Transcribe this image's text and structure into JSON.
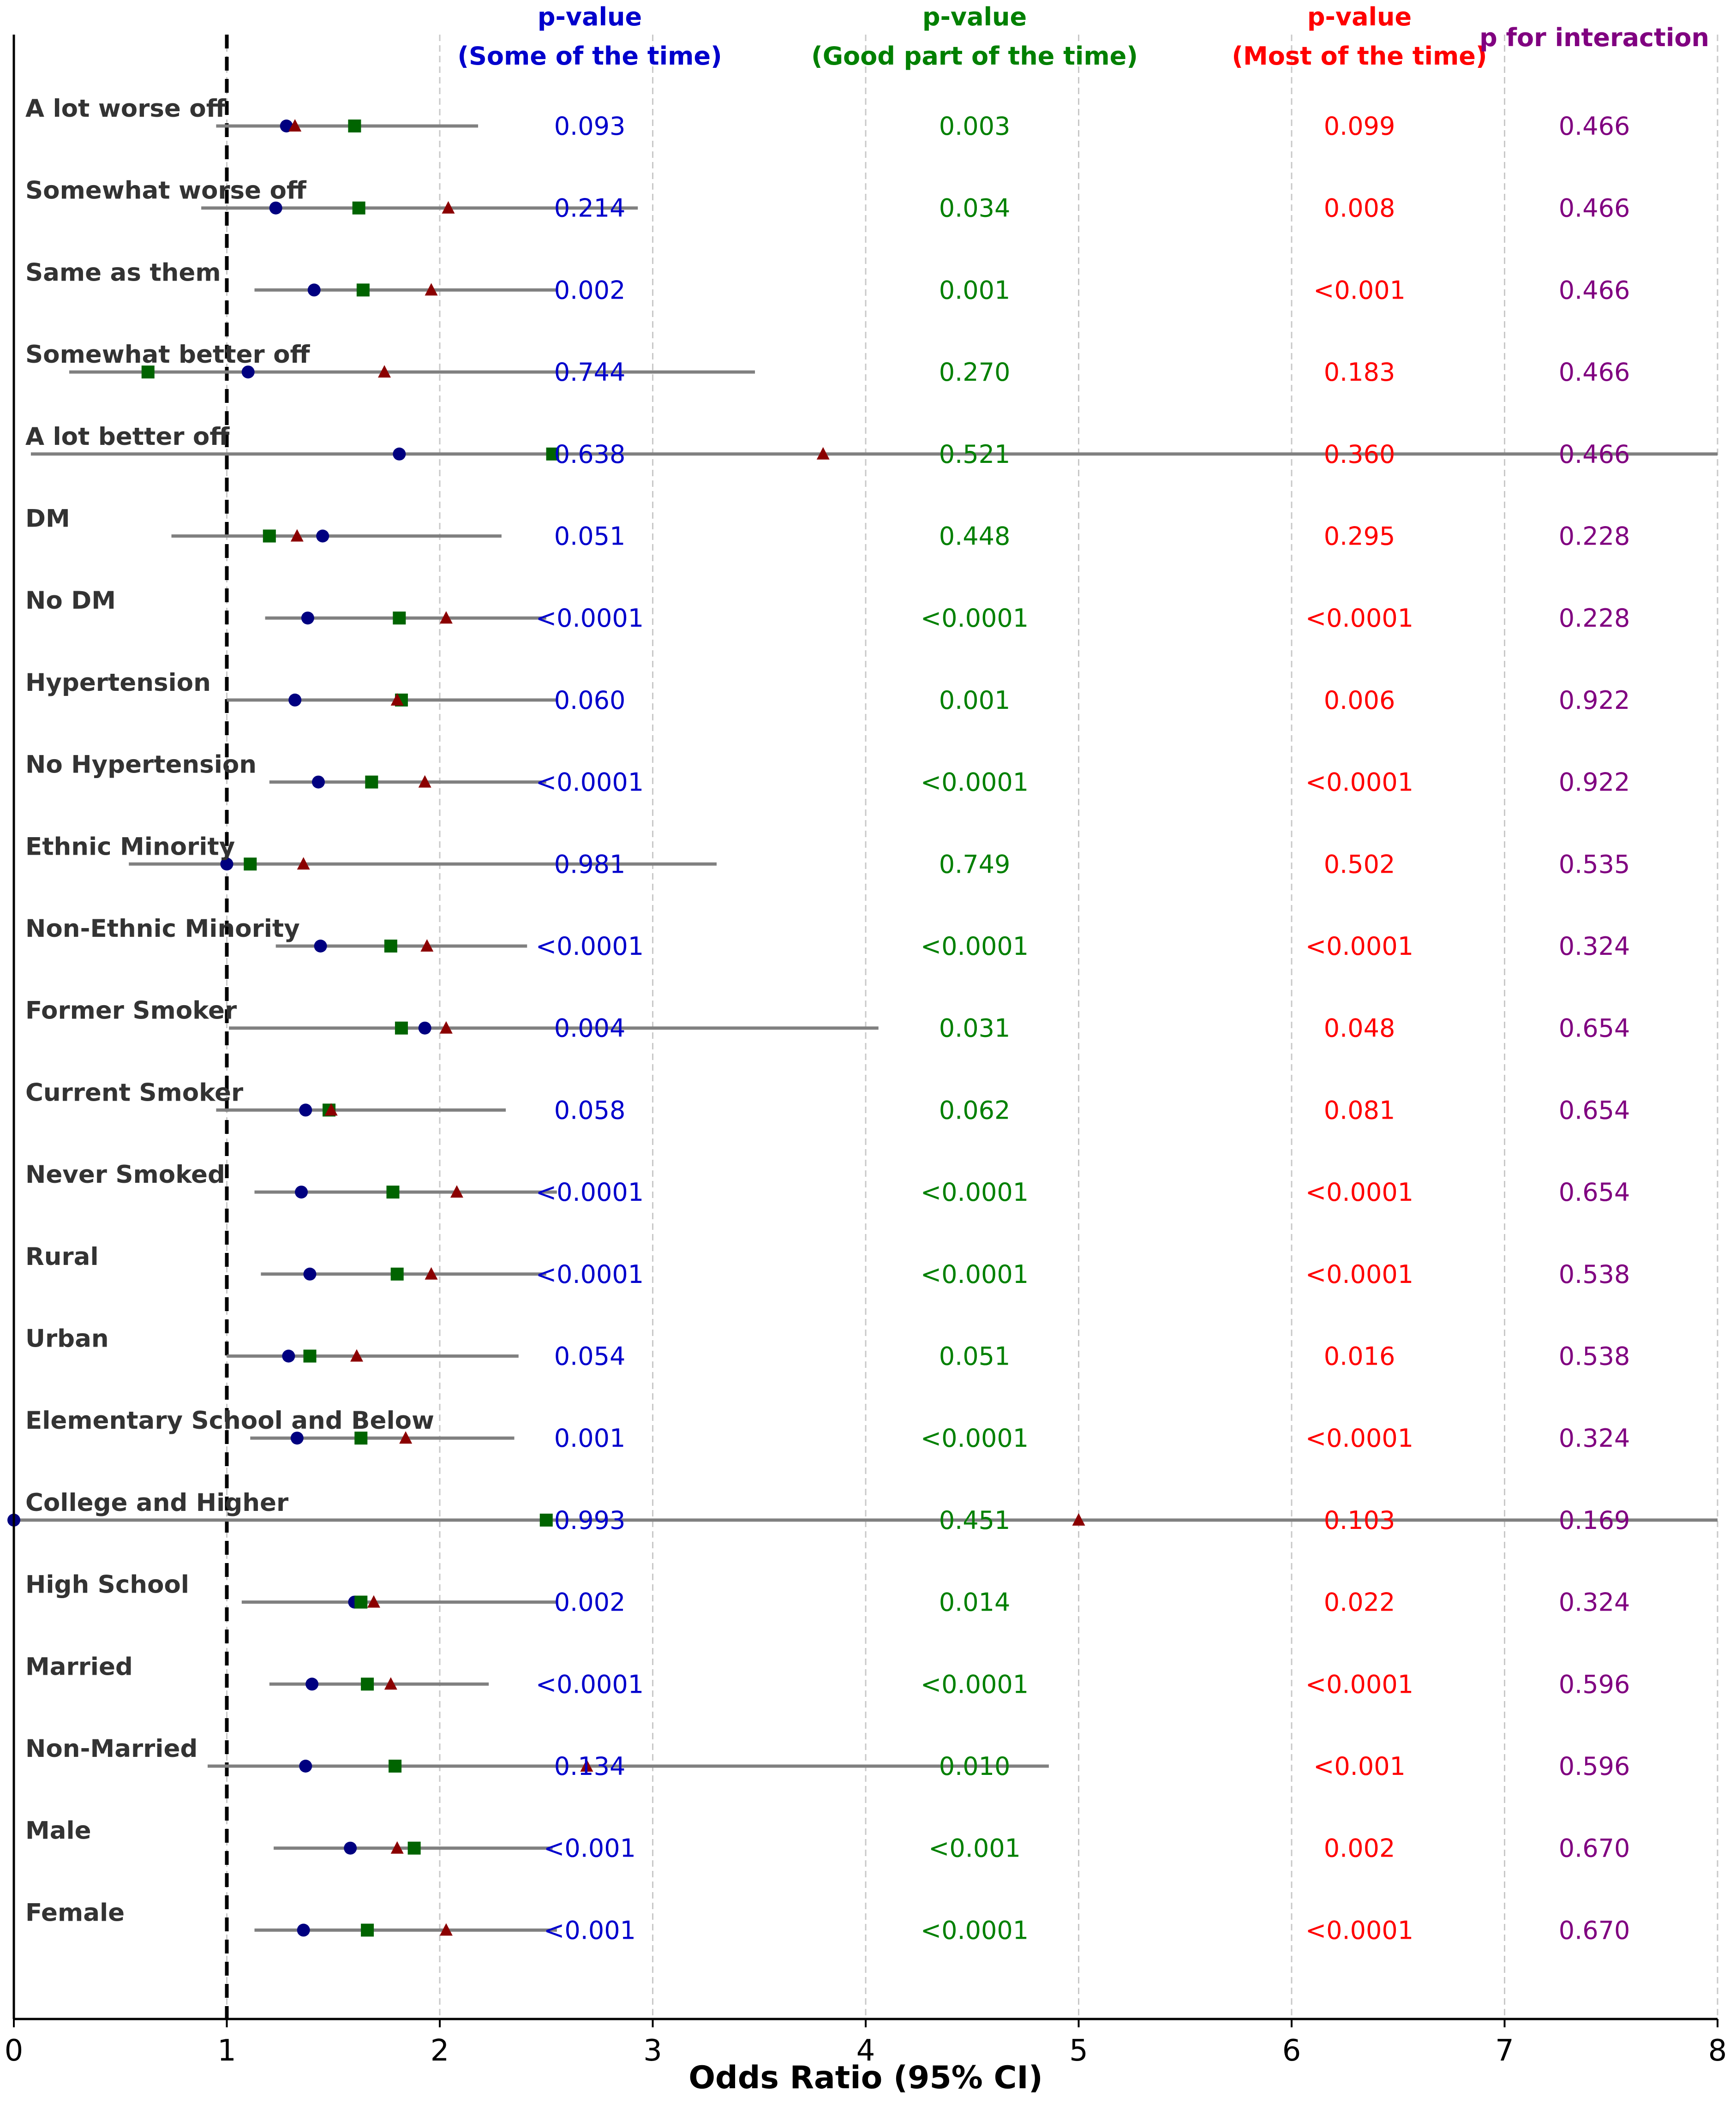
{
  "chart_data": {
    "type": "forest",
    "xlabel": "Odds Ratio (95% CI)",
    "xlim": [
      0,
      8
    ],
    "xticks": [
      "0",
      "1",
      "2",
      "3",
      "4",
      "5",
      "6",
      "7",
      "8"
    ],
    "reference_line": 1,
    "grid": "vertical dashed",
    "colors": {
      "some": "#0000cc",
      "good": "#008000",
      "most": "#ff0000",
      "interaction": "#800080",
      "ci_line": "#808080",
      "row_label": "#333333",
      "marker_some": "#000080",
      "marker_good": "#006400",
      "marker_most": "#8b0000"
    },
    "series": [
      {
        "key": "some",
        "name": "Some of the time",
        "marker": "circle"
      },
      {
        "key": "good",
        "name": "Good part of the time",
        "marker": "square"
      },
      {
        "key": "most",
        "name": "Most of the time",
        "marker": "triangle"
      }
    ],
    "headers": {
      "some": [
        "p-value",
        "(Some of the time)"
      ],
      "good": [
        "p-value",
        "(Good part of the time)"
      ],
      "most": [
        "p-value",
        "(Most of the time)"
      ],
      "interaction": [
        "p for interaction"
      ]
    },
    "rows": [
      {
        "label": "A lot worse off",
        "ci": [
          0.95,
          2.18
        ],
        "or": {
          "some": 1.28,
          "good": 1.6,
          "most": 1.32
        },
        "p": {
          "some": "0.093",
          "good": "0.003",
          "most": "0.099",
          "interaction": "0.466"
        }
      },
      {
        "label": "Somewhat worse off",
        "ci": [
          0.88,
          2.93
        ],
        "or": {
          "some": 1.23,
          "good": 1.62,
          "most": 2.04
        },
        "p": {
          "some": "0.214",
          "good": "0.034",
          "most": "0.008",
          "interaction": "0.466"
        }
      },
      {
        "label": "Same as them",
        "ci": [
          1.13,
          2.55
        ],
        "or": {
          "some": 1.41,
          "good": 1.64,
          "most": 1.96
        },
        "p": {
          "some": "0.002",
          "good": "0.001",
          "most": "<0.001",
          "interaction": "0.466"
        }
      },
      {
        "label": "Somewhat better off",
        "ci": [
          0.26,
          3.48
        ],
        "or": {
          "some": 1.1,
          "good": 0.63,
          "most": 1.74
        },
        "p": {
          "some": "0.744",
          "good": "0.270",
          "most": "0.183",
          "interaction": "0.466"
        }
      },
      {
        "label": "A lot better off",
        "ci": [
          0.08,
          8.0
        ],
        "or": {
          "some": 1.81,
          "good": 2.53,
          "most": 3.8
        },
        "p": {
          "some": "0.638",
          "good": "0.521",
          "most": "0.360",
          "interaction": "0.466"
        }
      },
      {
        "label": "DM",
        "ci": [
          0.74,
          2.29
        ],
        "or": {
          "some": 1.45,
          "good": 1.2,
          "most": 1.33
        },
        "p": {
          "some": "0.051",
          "good": "0.448",
          "most": "0.295",
          "interaction": "0.228"
        }
      },
      {
        "label": "No DM",
        "ci": [
          1.18,
          2.5
        ],
        "or": {
          "some": 1.38,
          "good": 1.81,
          "most": 2.03
        },
        "p": {
          "some": "<0.0001",
          "good": "<0.0001",
          "most": "<0.0001",
          "interaction": "0.228"
        }
      },
      {
        "label": "Hypertension",
        "ci": [
          1.0,
          2.55
        ],
        "or": {
          "some": 1.32,
          "good": 1.82,
          "most": 1.8
        },
        "p": {
          "some": "0.060",
          "good": "0.001",
          "most": "0.006",
          "interaction": "0.922"
        }
      },
      {
        "label": "No Hypertension",
        "ci": [
          1.2,
          2.5
        ],
        "or": {
          "some": 1.43,
          "good": 1.68,
          "most": 1.93
        },
        "p": {
          "some": "<0.0001",
          "good": "<0.0001",
          "most": "<0.0001",
          "interaction": "0.922"
        }
      },
      {
        "label": "Ethnic Minority",
        "ci": [
          0.54,
          3.3
        ],
        "or": {
          "some": 1.0,
          "good": 1.11,
          "most": 1.36
        },
        "p": {
          "some": "0.981",
          "good": "0.749",
          "most": "0.502",
          "interaction": "0.535"
        }
      },
      {
        "label": "Non-Ethnic Minority",
        "ci": [
          1.23,
          2.41
        ],
        "or": {
          "some": 1.44,
          "good": 1.77,
          "most": 1.94
        },
        "p": {
          "some": "<0.0001",
          "good": "<0.0001",
          "most": "<0.0001",
          "interaction": "0.324"
        }
      },
      {
        "label": "Former Smoker",
        "ci": [
          1.01,
          4.06
        ],
        "or": {
          "some": 1.93,
          "good": 1.82,
          "most": 2.03
        },
        "p": {
          "some": "0.004",
          "good": "0.031",
          "most": "0.048",
          "interaction": "0.654"
        }
      },
      {
        "label": "Current Smoker",
        "ci": [
          0.95,
          2.31
        ],
        "or": {
          "some": 1.37,
          "good": 1.48,
          "most": 1.49
        },
        "p": {
          "some": "0.058",
          "good": "0.062",
          "most": "0.081",
          "interaction": "0.654"
        }
      },
      {
        "label": "Never Smoked",
        "ci": [
          1.13,
          2.55
        ],
        "or": {
          "some": 1.35,
          "good": 1.78,
          "most": 2.08
        },
        "p": {
          "some": "<0.0001",
          "good": "<0.0001",
          "most": "<0.0001",
          "interaction": "0.654"
        }
      },
      {
        "label": "Rural",
        "ci": [
          1.16,
          2.5
        ],
        "or": {
          "some": 1.39,
          "good": 1.8,
          "most": 1.96
        },
        "p": {
          "some": "<0.0001",
          "good": "<0.0001",
          "most": "<0.0001",
          "interaction": "0.538"
        }
      },
      {
        "label": "Urban",
        "ci": [
          1.0,
          2.37
        ],
        "or": {
          "some": 1.29,
          "good": 1.39,
          "most": 1.61
        },
        "p": {
          "some": "0.054",
          "good": "0.051",
          "most": "0.016",
          "interaction": "0.538"
        }
      },
      {
        "label": "Elementary School and Below",
        "ci": [
          1.11,
          2.35
        ],
        "or": {
          "some": 1.33,
          "good": 1.63,
          "most": 1.84
        },
        "p": {
          "some": "0.001",
          "good": "<0.0001",
          "most": "<0.0001",
          "interaction": "0.324"
        }
      },
      {
        "label": "College and Higher",
        "ci": [
          0.0,
          8.0
        ],
        "or": {
          "some": 0.0,
          "good": 2.5,
          "most": 5.0
        },
        "p": {
          "some": "0.993",
          "good": "0.451",
          "most": "0.103",
          "interaction": "0.169"
        }
      },
      {
        "label": "High School",
        "ci": [
          1.07,
          2.55
        ],
        "or": {
          "some": 1.6,
          "good": 1.63,
          "most": 1.69
        },
        "p": {
          "some": "0.002",
          "good": "0.014",
          "most": "0.022",
          "interaction": "0.324"
        }
      },
      {
        "label": "Married",
        "ci": [
          1.2,
          2.23
        ],
        "or": {
          "some": 1.4,
          "good": 1.66,
          "most": 1.77
        },
        "p": {
          "some": "<0.0001",
          "good": "<0.0001",
          "most": "<0.0001",
          "interaction": "0.596"
        }
      },
      {
        "label": "Non-Married",
        "ci": [
          0.91,
          4.86
        ],
        "or": {
          "some": 1.37,
          "good": 1.79,
          "most": 2.69
        },
        "p": {
          "some": "0.134",
          "good": "0.010",
          "most": "<0.001",
          "interaction": "0.596"
        }
      },
      {
        "label": "Male",
        "ci": [
          1.22,
          2.53
        ],
        "or": {
          "some": 1.58,
          "good": 1.88,
          "most": 1.8
        },
        "p": {
          "some": "<0.001",
          "good": "<0.001",
          "most": "0.002",
          "interaction": "0.670"
        }
      },
      {
        "label": "Female",
        "ci": [
          1.13,
          2.55
        ],
        "or": {
          "some": 1.36,
          "good": 1.66,
          "most": 2.03
        },
        "p": {
          "some": "<0.001",
          "good": "<0.0001",
          "most": "<0.0001",
          "interaction": "0.670"
        }
      }
    ]
  }
}
